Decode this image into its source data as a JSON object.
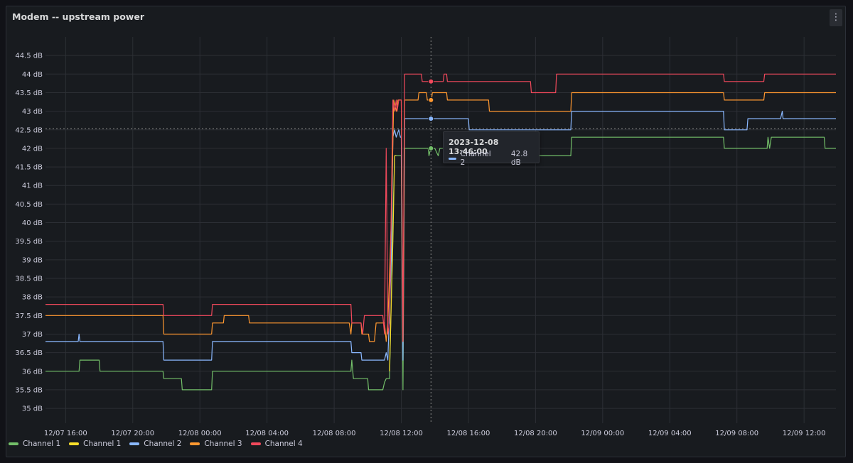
{
  "panel": {
    "title": "Modem -- upstream power",
    "menu_icon": "vertical-ellipsis-icon"
  },
  "chart_data": {
    "type": "line",
    "title": "Modem -- upstream power",
    "x_tick_labels": [
      "12/07 16:00",
      "12/07 20:00",
      "12/08 00:00",
      "12/08 04:00",
      "12/08 08:00",
      "12/08 12:00",
      "12/08 16:00",
      "12/08 20:00",
      "12/09 00:00",
      "12/09 04:00",
      "12/09 08:00",
      "12/09 12:00"
    ],
    "x_range_hours": [
      -1.2,
      45.9
    ],
    "y_tick_labels": [
      "35 dB",
      "35.5 dB",
      "36 dB",
      "36.5 dB",
      "37 dB",
      "37.5 dB",
      "38 dB",
      "38.5 dB",
      "39 dB",
      "39.5 dB",
      "40 dB",
      "40.5 dB",
      "41 dB",
      "41.5 dB",
      "42 dB",
      "42.5 dB",
      "43 dB",
      "43.5 dB",
      "44 dB",
      "44.5 dB"
    ],
    "y_ticks": [
      35,
      35.5,
      36,
      36.5,
      37,
      37.5,
      38,
      38.5,
      39,
      39.5,
      40,
      40.5,
      41,
      41.5,
      42,
      42.5,
      43,
      43.5,
      44,
      44.5
    ],
    "ylim": [
      34.6,
      45.0
    ],
    "unit": "dB",
    "grid": true,
    "legend_placement": "bottom-left",
    "crosshair": {
      "x": 21.77,
      "y": 42.53
    },
    "series": [
      {
        "name": "Channel 1",
        "color": "#73bf69",
        "points": [
          [
            -1.2,
            36.0
          ],
          [
            0.8,
            36.0
          ],
          [
            0.85,
            36.3
          ],
          [
            2.0,
            36.3
          ],
          [
            2.05,
            36.0
          ],
          [
            5.8,
            36.0
          ],
          [
            5.85,
            35.8
          ],
          [
            6.9,
            35.8
          ],
          [
            6.95,
            35.5
          ],
          [
            8.7,
            35.5
          ],
          [
            8.75,
            36.0
          ],
          [
            17.0,
            36.0
          ],
          [
            17.05,
            36.3
          ],
          [
            17.15,
            35.8
          ],
          [
            18.0,
            35.8
          ],
          [
            18.05,
            35.5
          ],
          [
            18.9,
            35.5
          ],
          [
            19.0,
            35.7
          ],
          [
            19.1,
            35.8
          ],
          [
            19.3,
            35.8
          ],
          [
            19.5,
            40.0
          ],
          [
            19.6,
            41.8
          ],
          [
            19.8,
            41.8
          ],
          [
            20.0,
            41.8
          ],
          [
            20.1,
            35.5
          ],
          [
            20.2,
            42.0
          ],
          [
            21.6,
            42.0
          ],
          [
            21.65,
            41.8
          ],
          [
            21.75,
            42.0
          ],
          [
            22.0,
            42.0
          ],
          [
            22.2,
            41.8
          ],
          [
            22.3,
            42.0
          ],
          [
            22.5,
            42.0
          ],
          [
            22.55,
            41.8
          ],
          [
            30.1,
            41.8
          ],
          [
            30.15,
            42.3
          ],
          [
            39.2,
            42.3
          ],
          [
            39.25,
            42.0
          ],
          [
            41.8,
            42.0
          ],
          [
            41.85,
            42.3
          ],
          [
            41.95,
            42.0
          ],
          [
            42.05,
            42.3
          ],
          [
            45.2,
            42.3
          ],
          [
            45.25,
            42.0
          ],
          [
            45.9,
            42.0
          ]
        ]
      },
      {
        "name": "Channel 1",
        "color": "#fade2a",
        "points": [
          [
            19.3,
            36.0
          ],
          [
            19.5,
            39.5
          ],
          [
            19.6,
            41.8
          ],
          [
            19.7,
            41.8
          ]
        ]
      },
      {
        "name": "Channel 2",
        "color": "#8ab8ff",
        "points": [
          [
            -1.2,
            36.8
          ],
          [
            0.75,
            36.8
          ],
          [
            0.8,
            37.0
          ],
          [
            0.85,
            36.8
          ],
          [
            5.8,
            36.8
          ],
          [
            5.85,
            36.3
          ],
          [
            8.7,
            36.3
          ],
          [
            8.75,
            36.8
          ],
          [
            17.0,
            36.8
          ],
          [
            17.05,
            36.5
          ],
          [
            17.6,
            36.5
          ],
          [
            17.65,
            36.3
          ],
          [
            19.0,
            36.3
          ],
          [
            19.1,
            36.5
          ],
          [
            19.2,
            36.3
          ],
          [
            19.4,
            39.0
          ],
          [
            19.5,
            42.3
          ],
          [
            19.6,
            42.5
          ],
          [
            19.7,
            42.3
          ],
          [
            19.85,
            42.5
          ],
          [
            19.95,
            42.3
          ],
          [
            20.0,
            42.3
          ],
          [
            20.1,
            36.3
          ],
          [
            20.2,
            42.8
          ],
          [
            24.0,
            42.8
          ],
          [
            24.05,
            42.5
          ],
          [
            30.1,
            42.5
          ],
          [
            30.15,
            43.0
          ],
          [
            39.2,
            43.0
          ],
          [
            39.25,
            42.5
          ],
          [
            40.6,
            42.5
          ],
          [
            40.65,
            42.8
          ],
          [
            42.6,
            42.8
          ],
          [
            42.7,
            43.0
          ],
          [
            42.75,
            42.8
          ],
          [
            45.9,
            42.8
          ]
        ]
      },
      {
        "name": "Channel 3",
        "color": "#ff9830",
        "points": [
          [
            -1.2,
            37.5
          ],
          [
            5.8,
            37.5
          ],
          [
            5.85,
            37.0
          ],
          [
            8.7,
            37.0
          ],
          [
            8.75,
            37.3
          ],
          [
            9.4,
            37.3
          ],
          [
            9.45,
            37.5
          ],
          [
            10.9,
            37.5
          ],
          [
            10.95,
            37.3
          ],
          [
            16.9,
            37.3
          ],
          [
            17.0,
            37.0
          ],
          [
            17.05,
            37.3
          ],
          [
            17.6,
            37.3
          ],
          [
            17.65,
            37.0
          ],
          [
            18.05,
            37.0
          ],
          [
            18.1,
            36.8
          ],
          [
            18.4,
            36.8
          ],
          [
            18.5,
            37.3
          ],
          [
            19.0,
            37.3
          ],
          [
            19.1,
            36.8
          ],
          [
            19.2,
            37.3
          ],
          [
            19.4,
            40.0
          ],
          [
            19.55,
            43.3
          ],
          [
            19.7,
            43.0
          ],
          [
            19.8,
            43.3
          ],
          [
            20.0,
            43.3
          ],
          [
            20.1,
            36.8
          ],
          [
            20.2,
            43.3
          ],
          [
            21.0,
            43.3
          ],
          [
            21.05,
            43.5
          ],
          [
            21.5,
            43.5
          ],
          [
            21.55,
            43.3
          ],
          [
            21.8,
            43.3
          ],
          [
            21.85,
            43.5
          ],
          [
            22.7,
            43.5
          ],
          [
            22.75,
            43.3
          ],
          [
            25.2,
            43.3
          ],
          [
            25.25,
            43.0
          ],
          [
            30.1,
            43.0
          ],
          [
            30.15,
            43.5
          ],
          [
            39.2,
            43.5
          ],
          [
            39.25,
            43.3
          ],
          [
            41.6,
            43.3
          ],
          [
            41.65,
            43.5
          ],
          [
            45.9,
            43.5
          ]
        ]
      },
      {
        "name": "Channel 4",
        "color": "#f2495c",
        "points": [
          [
            -1.2,
            37.8
          ],
          [
            5.8,
            37.8
          ],
          [
            5.85,
            37.5
          ],
          [
            8.7,
            37.5
          ],
          [
            8.75,
            37.8
          ],
          [
            17.0,
            37.8
          ],
          [
            17.05,
            37.3
          ],
          [
            17.6,
            37.3
          ],
          [
            17.7,
            37.0
          ],
          [
            17.8,
            37.5
          ],
          [
            18.9,
            37.5
          ],
          [
            19.0,
            37.0
          ],
          [
            19.1,
            42.0
          ],
          [
            19.2,
            37.0
          ],
          [
            19.3,
            37.3
          ],
          [
            19.5,
            43.3
          ],
          [
            19.6,
            43.0
          ],
          [
            19.7,
            43.3
          ],
          [
            19.75,
            43.0
          ],
          [
            19.85,
            43.3
          ],
          [
            20.0,
            43.3
          ],
          [
            20.1,
            36.8
          ],
          [
            20.2,
            44.0
          ],
          [
            21.2,
            44.0
          ],
          [
            21.25,
            43.8
          ],
          [
            22.5,
            43.8
          ],
          [
            22.55,
            44.0
          ],
          [
            22.7,
            44.0
          ],
          [
            22.75,
            43.8
          ],
          [
            27.7,
            43.8
          ],
          [
            27.75,
            43.5
          ],
          [
            29.2,
            43.5
          ],
          [
            29.25,
            44.0
          ],
          [
            39.2,
            44.0
          ],
          [
            39.25,
            43.8
          ],
          [
            41.6,
            43.8
          ],
          [
            41.65,
            44.0
          ],
          [
            45.9,
            44.0
          ]
        ]
      }
    ],
    "hover_markers": [
      {
        "series": "Channel 4",
        "value": 43.8,
        "color": "#f2495c"
      },
      {
        "series": "Channel 3",
        "value": 43.3,
        "color": "#ff9830"
      },
      {
        "series": "Channel 2",
        "value": 42.8,
        "color": "#8ab8ff"
      },
      {
        "series": "Channel 1",
        "value": 42.0,
        "color": "#73bf69"
      }
    ]
  },
  "tooltip": {
    "time": "2023-12-08 13:46:00",
    "series_name": "Channel 2",
    "series_color": "#8ab8ff",
    "value": "42.8 dB"
  },
  "legend": [
    {
      "label": "Channel 1",
      "color": "#73bf69"
    },
    {
      "label": "Channel 1",
      "color": "#fade2a"
    },
    {
      "label": "Channel 2",
      "color": "#8ab8ff"
    },
    {
      "label": "Channel 3",
      "color": "#ff9830"
    },
    {
      "label": "Channel 4",
      "color": "#f2495c"
    }
  ]
}
